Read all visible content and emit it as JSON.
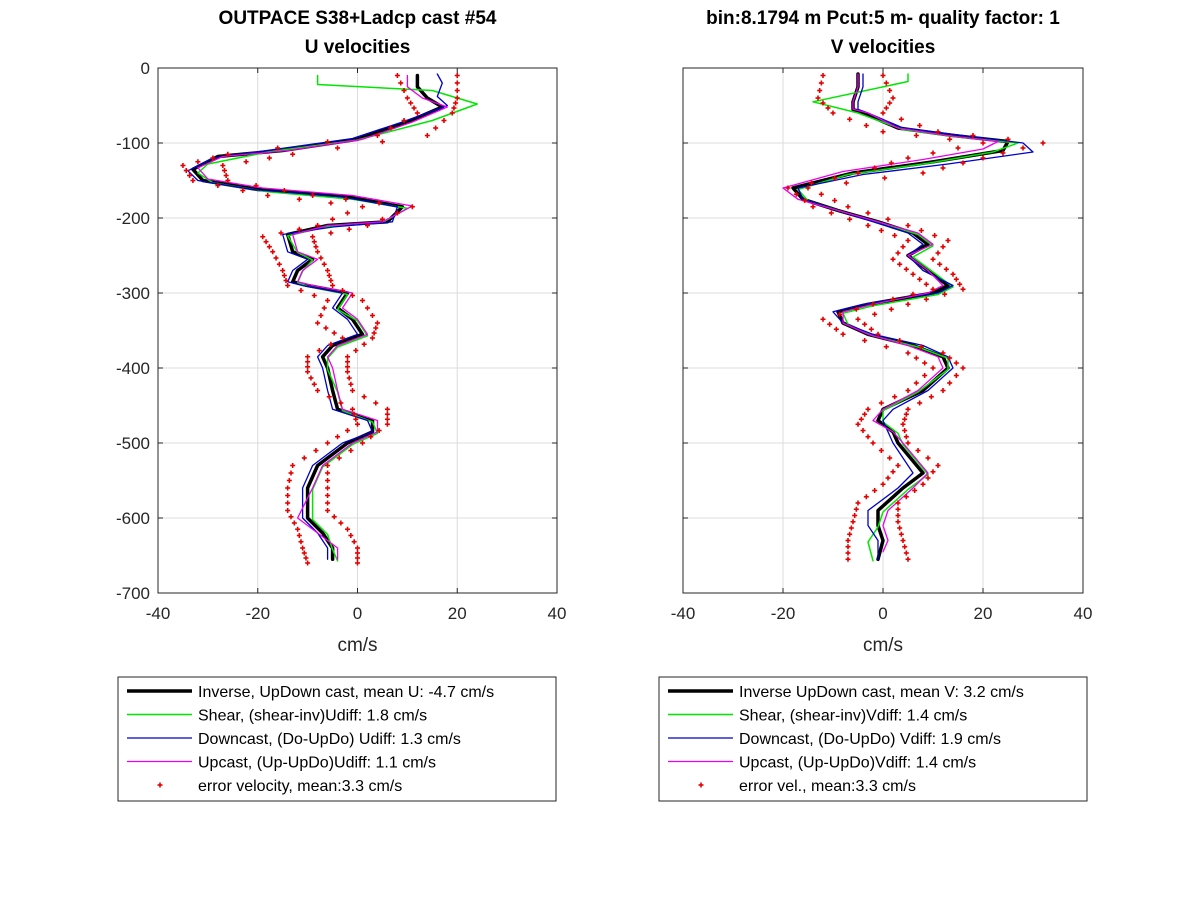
{
  "chart_data": [
    {
      "type": "line",
      "title": "OUTPACE S38+Ladcp cast #54",
      "subtitle": "U velocities",
      "xlabel": "cm/s",
      "ylabel": "",
      "xlim": [
        -40,
        40
      ],
      "ylim": [
        -700,
        0
      ],
      "xticks": [
        "-40",
        "-20",
        "0",
        "20",
        "40"
      ],
      "yticks": [
        "0",
        "-100",
        "-200",
        "-300",
        "-400",
        "-500",
        "-600",
        "-700"
      ],
      "grid": true,
      "legend_position": "below",
      "series": [
        {
          "name": "Inverse, UpDown cast, mean U:  -4.7 cm/s",
          "color": "#000000",
          "width": 3.5,
          "style": "line",
          "x": [
            12,
            12,
            14,
            17,
            10,
            0,
            -15,
            -28,
            -33,
            -31,
            -20,
            -2,
            9,
            6,
            -6,
            -14,
            -13,
            -9,
            -12,
            -13,
            -10,
            -2,
            -4,
            -1,
            1,
            -5,
            -7,
            -6,
            -5,
            -4,
            3,
            3,
            -2,
            -8,
            -10,
            -10,
            -7,
            -5,
            -5
          ],
          "y": [
            -10,
            -25,
            -40,
            -52,
            -72,
            -95,
            -110,
            -118,
            -135,
            -150,
            -162,
            -172,
            -185,
            -205,
            -210,
            -222,
            -245,
            -255,
            -270,
            -285,
            -290,
            -300,
            -320,
            -335,
            -355,
            -370,
            -385,
            -400,
            -430,
            -455,
            -470,
            -485,
            -500,
            -530,
            -560,
            -600,
            -620,
            -640,
            -655
          ]
        },
        {
          "name": "Shear, (shear-inv)Udiff:  1.8 cm/s",
          "color": "#00e600",
          "width": 1.5,
          "style": "line",
          "x": [
            -8,
            -8,
            15,
            24,
            15,
            0,
            -18,
            -30,
            -32,
            -29,
            -18,
            -1,
            10,
            5,
            -7,
            -14,
            -12,
            -9,
            -11,
            -12,
            -10,
            -2,
            -4,
            0,
            2,
            -4,
            -6,
            -6,
            -4,
            -3,
            3,
            4,
            -1,
            -7,
            -9,
            -9,
            -6,
            -5,
            -4
          ],
          "y": [
            -10,
            -22,
            -30,
            -48,
            -70,
            -96,
            -112,
            -128,
            -140,
            -153,
            -165,
            -175,
            -187,
            -206,
            -212,
            -224,
            -246,
            -256,
            -271,
            -286,
            -291,
            -302,
            -322,
            -337,
            -357,
            -372,
            -387,
            -402,
            -432,
            -457,
            -472,
            -487,
            -502,
            -532,
            -562,
            -602,
            -622,
            -642,
            -657
          ]
        },
        {
          "name": "Downcast, (Do-UpDo) Udiff:  1.3 cm/s",
          "color": "#0000cc",
          "width": 1.3,
          "style": "line",
          "x": [
            16,
            17,
            16,
            18,
            9,
            -1,
            -16,
            -29,
            -34,
            -32,
            -21,
            -3,
            8,
            7,
            -5,
            -15,
            -14,
            -10,
            -13,
            -14,
            -11,
            -3,
            -5,
            -2,
            0,
            -6,
            -8,
            -7,
            -6,
            -5,
            2,
            3,
            -3,
            -9,
            -11,
            -11,
            -8,
            -6,
            -6
          ],
          "y": [
            -8,
            -20,
            -38,
            -50,
            -72,
            -94,
            -108,
            -120,
            -137,
            -150,
            -162,
            -172,
            -185,
            -205,
            -212,
            -222,
            -245,
            -255,
            -270,
            -285,
            -290,
            -300,
            -320,
            -335,
            -355,
            -370,
            -385,
            -400,
            -430,
            -455,
            -470,
            -485,
            -500,
            -530,
            -560,
            -600,
            -620,
            -640,
            -655
          ]
        },
        {
          "name": "Upcast, (Up-UpDo)Udiff:  1.1 cm/s",
          "color": "#ee00ee",
          "width": 1.3,
          "style": "line",
          "x": [
            10,
            10,
            13,
            18,
            11,
            1,
            -14,
            -27,
            -32,
            -30,
            -19,
            -1,
            11,
            5,
            -6,
            -13,
            -12,
            -8,
            -11,
            -12,
            -9,
            -1,
            -3,
            0,
            2,
            -4,
            -6,
            -5,
            -4,
            -3,
            4,
            4,
            -1,
            -7,
            -9,
            -12,
            -8,
            -4,
            -4
          ],
          "y": [
            -10,
            -25,
            -40,
            -52,
            -72,
            -95,
            -110,
            -118,
            -133,
            -148,
            -160,
            -170,
            -184,
            -205,
            -210,
            -222,
            -245,
            -255,
            -270,
            -285,
            -290,
            -300,
            -320,
            -335,
            -355,
            -370,
            -385,
            -400,
            -430,
            -455,
            -470,
            -485,
            -500,
            -530,
            -560,
            -600,
            -620,
            -640,
            -655
          ]
        },
        {
          "name": "error velocity, mean:3.3 cm/s",
          "color": "#e60000",
          "style": "markers",
          "envelope": [
            [
              -10,
              8,
              20
            ],
            [
              -40,
              10,
              20
            ],
            [
              -60,
              12,
              19
            ],
            [
              -90,
              4,
              14
            ],
            [
              -115,
              -26,
              -13
            ],
            [
              -130,
              -35,
              -27
            ],
            [
              -150,
              -33,
              -26
            ],
            [
              -170,
              -18,
              -9
            ],
            [
              -185,
              1,
              11
            ],
            [
              -210,
              -8,
              2
            ],
            [
              -225,
              -19,
              -9
            ],
            [
              -245,
              -17,
              -8
            ],
            [
              -270,
              -15,
              -6
            ],
            [
              -290,
              -14,
              -5
            ],
            [
              -310,
              -6,
              1
            ],
            [
              -340,
              -8,
              4
            ],
            [
              -360,
              -3,
              3
            ],
            [
              -385,
              -10,
              -2
            ],
            [
              -405,
              -10,
              -2
            ],
            [
              -430,
              -8,
              -1
            ],
            [
              -455,
              -1,
              6
            ],
            [
              -475,
              0,
              6
            ],
            [
              -500,
              -6,
              1
            ],
            [
              -530,
              -13,
              -6
            ],
            [
              -560,
              -14,
              -6
            ],
            [
              -590,
              -14,
              -6
            ],
            [
              -615,
              -12,
              -2
            ],
            [
              -640,
              -11,
              0
            ],
            [
              -660,
              -10,
              0
            ]
          ]
        }
      ]
    },
    {
      "type": "line",
      "title": "bin:8.1794 m  Pcut:5 m- quality factor:  1",
      "subtitle": "V velocities",
      "xlabel": "cm/s",
      "ylabel": "",
      "xlim": [
        -40,
        40
      ],
      "ylim": [
        -700,
        0
      ],
      "xticks": [
        "-40",
        "-20",
        "0",
        "20",
        "40"
      ],
      "yticks": [],
      "grid": true,
      "legend_position": "below",
      "series": [
        {
          "name": "Inverse UpDown cast, mean V:  3.2 cm/s",
          "color": "#000000",
          "width": 3.5,
          "style": "line",
          "x": [
            -5,
            -5,
            -6,
            -6,
            -4,
            3,
            14,
            25,
            24,
            10,
            -6,
            -18,
            -16,
            -9,
            -1,
            6,
            9,
            5,
            9,
            13,
            10,
            -3,
            -9,
            -8,
            -3,
            6,
            12,
            13,
            8,
            0,
            -1,
            2,
            3,
            8,
            4,
            -1,
            -1,
            0,
            -1
          ],
          "y": [
            -8,
            -25,
            -45,
            -55,
            -60,
            -80,
            -90,
            -98,
            -110,
            -125,
            -140,
            -160,
            -175,
            -190,
            -205,
            -220,
            -235,
            -250,
            -270,
            -290,
            -300,
            -315,
            -325,
            -340,
            -355,
            -370,
            -385,
            -400,
            -430,
            -455,
            -470,
            -485,
            -500,
            -540,
            -560,
            -590,
            -610,
            -630,
            -655
          ]
        },
        {
          "name": "Shear, (shear-inv)Vdiff:  1.4 cm/s",
          "color": "#00e600",
          "width": 1.5,
          "style": "line",
          "x": [
            5,
            5,
            -14,
            -5,
            -3,
            4,
            15,
            27,
            22,
            9,
            -7,
            -17,
            -15,
            -8,
            0,
            7,
            10,
            6,
            10,
            14,
            11,
            -2,
            -8,
            -7,
            -2,
            7,
            13,
            13,
            7,
            0,
            0,
            3,
            4,
            9,
            5,
            0,
            -1,
            -3,
            -2
          ],
          "y": [
            -8,
            -18,
            -45,
            -60,
            -65,
            -82,
            -92,
            -100,
            -112,
            -127,
            -142,
            -162,
            -177,
            -192,
            -207,
            -222,
            -237,
            -252,
            -272,
            -292,
            -302,
            -317,
            -327,
            -342,
            -357,
            -372,
            -387,
            -402,
            -432,
            -457,
            -472,
            -487,
            -502,
            -542,
            -562,
            -592,
            -612,
            -632,
            -657
          ]
        },
        {
          "name": "Downcast, (Do-UpDo) Vdiff:  1.9 cm/s",
          "color": "#0000cc",
          "width": 1.3,
          "style": "line",
          "x": [
            -4,
            -4,
            -5,
            -5,
            -3,
            4,
            16,
            28,
            30,
            13,
            -4,
            -17,
            -16,
            -9,
            -2,
            5,
            8,
            5,
            8,
            14,
            11,
            -4,
            -10,
            -8,
            -2,
            8,
            13,
            14,
            9,
            2,
            0,
            1,
            2,
            6,
            3,
            -3,
            -3,
            -1,
            -1
          ],
          "y": [
            -8,
            -25,
            -45,
            -55,
            -60,
            -80,
            -90,
            -100,
            -112,
            -128,
            -142,
            -160,
            -175,
            -190,
            -205,
            -220,
            -235,
            -250,
            -270,
            -290,
            -300,
            -315,
            -325,
            -340,
            -355,
            -370,
            -385,
            -400,
            -430,
            -455,
            -470,
            -485,
            -500,
            -540,
            -560,
            -590,
            -610,
            -630,
            -655
          ]
        },
        {
          "name": "Upcast, (Up-UpDo)Vdiff:  1.4 cm/s",
          "color": "#ee00ee",
          "width": 1.3,
          "style": "line",
          "x": [
            -5,
            -5,
            -6,
            -6,
            -3,
            3,
            13,
            23,
            20,
            8,
            -8,
            -20,
            -17,
            -9,
            -1,
            7,
            10,
            5,
            9,
            12,
            9,
            -2,
            -8,
            -8,
            -3,
            5,
            11,
            12,
            7,
            0,
            -2,
            2,
            4,
            9,
            6,
            1,
            0,
            1,
            0
          ],
          "y": [
            -8,
            -25,
            -45,
            -55,
            -60,
            -80,
            -90,
            -98,
            -108,
            -122,
            -138,
            -160,
            -175,
            -190,
            -205,
            -220,
            -235,
            -250,
            -270,
            -290,
            -300,
            -315,
            -325,
            -340,
            -355,
            -370,
            -385,
            -400,
            -430,
            -455,
            -470,
            -485,
            -500,
            -540,
            -560,
            -590,
            -610,
            -630,
            -645
          ]
        },
        {
          "name": "error vel., mean:3.3 cm/s",
          "color": "#e60000",
          "style": "markers",
          "envelope": [
            [
              -10,
              -12,
              0
            ],
            [
              -40,
              -13,
              2
            ],
            [
              -60,
              -10,
              0
            ],
            [
              -85,
              0,
              11
            ],
            [
              -100,
              20,
              32
            ],
            [
              -120,
              5,
              20
            ],
            [
              -140,
              -5,
              8
            ],
            [
              -160,
              -19,
              -15
            ],
            [
              -185,
              -14,
              -7
            ],
            [
              -210,
              -3,
              5
            ],
            [
              -230,
              5,
              13
            ],
            [
              -255,
              2,
              10
            ],
            [
              -275,
              6,
              14
            ],
            [
              -295,
              10,
              16
            ],
            [
              -315,
              -2,
              5
            ],
            [
              -335,
              -12,
              -5
            ],
            [
              -355,
              -8,
              -1
            ],
            [
              -380,
              5,
              12
            ],
            [
              -400,
              10,
              16
            ],
            [
              -430,
              5,
              12
            ],
            [
              -455,
              -3,
              5
            ],
            [
              -475,
              -5,
              4
            ],
            [
              -500,
              -2,
              5
            ],
            [
              -530,
              3,
              11
            ],
            [
              -555,
              0,
              8
            ],
            [
              -580,
              -5,
              3
            ],
            [
              -605,
              -6,
              3
            ],
            [
              -630,
              -7,
              4
            ],
            [
              -655,
              -7,
              5
            ]
          ]
        }
      ]
    }
  ]
}
